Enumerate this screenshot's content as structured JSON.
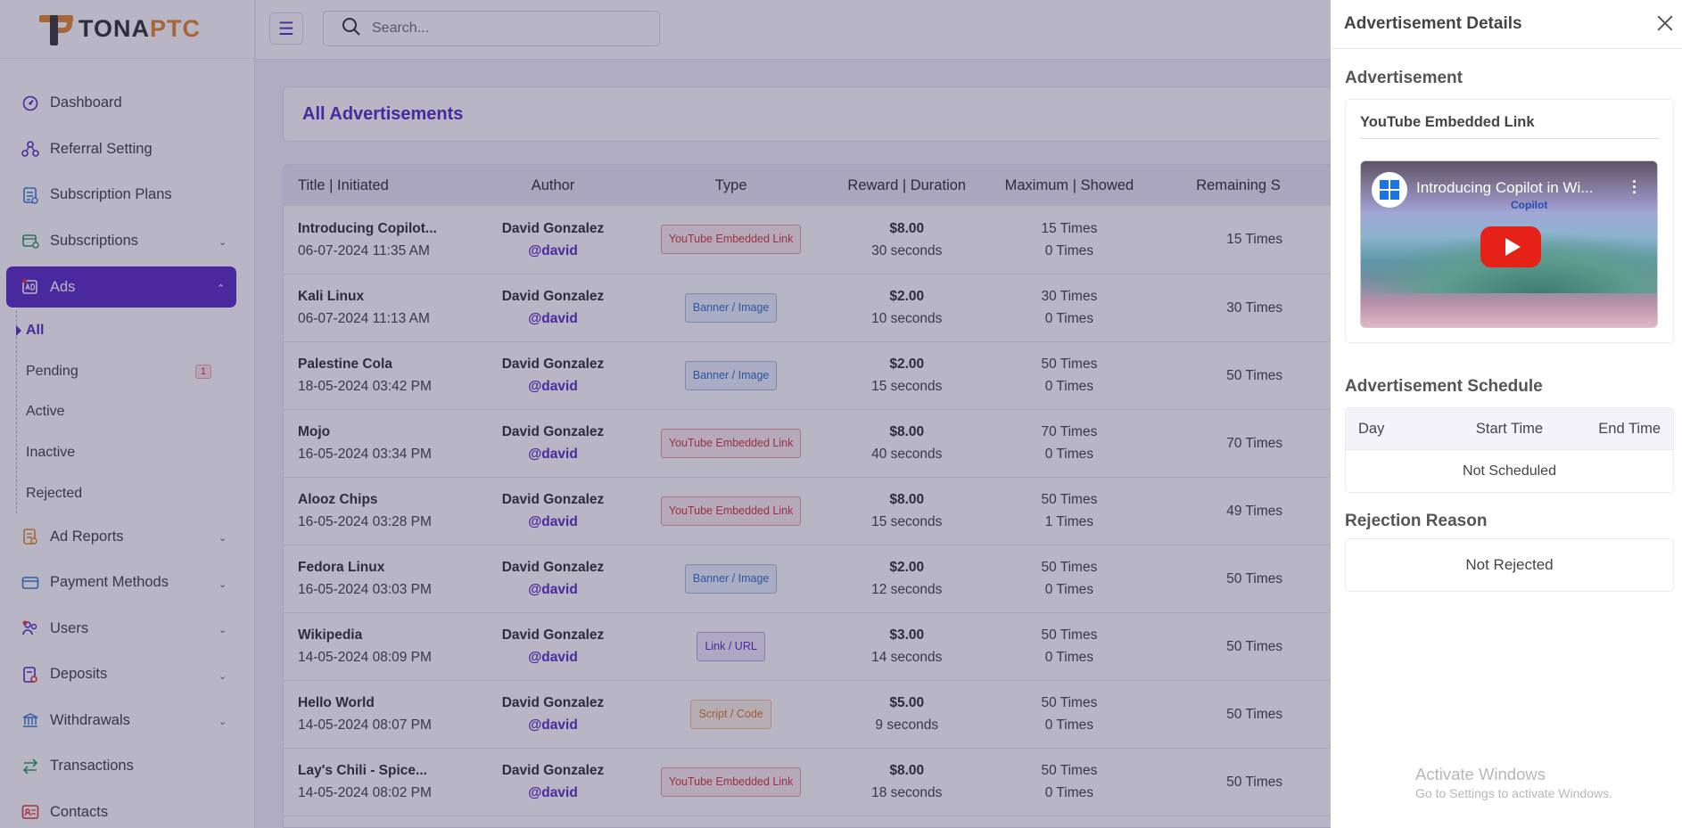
{
  "brand": {
    "name_part1": "TONA",
    "name_part2": "PTC"
  },
  "topbar": {
    "search_placeholder": "Search..."
  },
  "sidebar": {
    "items": [
      {
        "name": "dashboard",
        "icon": "gauge-icon",
        "label": "Dashboard",
        "expandable": false
      },
      {
        "name": "referral-setting",
        "icon": "network-icon",
        "label": "Referral Setting",
        "expandable": false
      },
      {
        "name": "subscription-plans",
        "icon": "clipboard-icon",
        "label": "Subscription Plans",
        "expandable": false
      },
      {
        "name": "subscriptions",
        "icon": "layers-icon",
        "label": "Subscriptions",
        "expandable": true
      },
      {
        "name": "ads",
        "icon": "ad-icon",
        "label": "Ads",
        "expandable": true,
        "active": true
      }
    ],
    "ads_submenu": [
      {
        "label": "All",
        "active": true
      },
      {
        "label": "Pending",
        "badge": "1"
      },
      {
        "label": "Active"
      },
      {
        "label": "Inactive"
      },
      {
        "label": "Rejected"
      }
    ],
    "items_after": [
      {
        "name": "ad-reports",
        "icon": "report-icon",
        "label": "Ad Reports",
        "expandable": true
      },
      {
        "name": "payment-methods",
        "icon": "credit-card-icon",
        "label": "Payment Methods",
        "expandable": true
      },
      {
        "name": "users",
        "icon": "users-icon",
        "label": "Users",
        "expandable": true
      },
      {
        "name": "deposits",
        "icon": "deposit-icon",
        "label": "Deposits",
        "expandable": true
      },
      {
        "name": "withdrawals",
        "icon": "bank-icon",
        "label": "Withdrawals",
        "expandable": true
      },
      {
        "name": "transactions",
        "icon": "swap-icon",
        "label": "Transactions",
        "expandable": false
      },
      {
        "name": "contacts",
        "icon": "contact-card-icon",
        "label": "Contacts",
        "expandable": false
      }
    ]
  },
  "main": {
    "page_title": "All Advertisements",
    "columns": [
      "Title | Initiated",
      "Author",
      "Type",
      "Reward | Duration",
      "Maximum | Showed",
      "Remaining S"
    ],
    "rows": [
      {
        "title": "Introducing Copilot...",
        "date": "06-07-2024 11:35 AM",
        "author": "David Gonzalez",
        "username": "@david",
        "type": "YouTube Embedded Link",
        "type_kind": "yt",
        "reward": "$8.00",
        "duration": "30 seconds",
        "maximum": "15 Times",
        "showed": "0 Times",
        "remaining": "15 Times"
      },
      {
        "title": "Kali Linux",
        "date": "06-07-2024 11:13 AM",
        "author": "David Gonzalez",
        "username": "@david",
        "type": "Banner / Image",
        "type_kind": "banner",
        "reward": "$2.00",
        "duration": "10 seconds",
        "maximum": "30 Times",
        "showed": "0 Times",
        "remaining": "30 Times"
      },
      {
        "title": "Palestine Cola",
        "date": "18-05-2024 03:42 PM",
        "author": "David Gonzalez",
        "username": "@david",
        "type": "Banner / Image",
        "type_kind": "banner",
        "reward": "$2.00",
        "duration": "15 seconds",
        "maximum": "50 Times",
        "showed": "0 Times",
        "remaining": "50 Times"
      },
      {
        "title": "Mojo",
        "date": "16-05-2024 03:34 PM",
        "author": "David Gonzalez",
        "username": "@david",
        "type": "YouTube Embedded Link",
        "type_kind": "yt",
        "reward": "$8.00",
        "duration": "40 seconds",
        "maximum": "70 Times",
        "showed": "0 Times",
        "remaining": "70 Times"
      },
      {
        "title": "Alooz Chips",
        "date": "16-05-2024 03:28 PM",
        "author": "David Gonzalez",
        "username": "@david",
        "type": "YouTube Embedded Link",
        "type_kind": "yt",
        "reward": "$8.00",
        "duration": "15 seconds",
        "maximum": "50 Times",
        "showed": "1 Times",
        "remaining": "49 Times"
      },
      {
        "title": "Fedora Linux",
        "date": "16-05-2024 03:03 PM",
        "author": "David Gonzalez",
        "username": "@david",
        "type": "Banner / Image",
        "type_kind": "banner",
        "reward": "$2.00",
        "duration": "12 seconds",
        "maximum": "50 Times",
        "showed": "0 Times",
        "remaining": "50 Times"
      },
      {
        "title": "Wikipedia",
        "date": "14-05-2024 08:09 PM",
        "author": "David Gonzalez",
        "username": "@david",
        "type": "Link / URL",
        "type_kind": "link",
        "reward": "$3.00",
        "duration": "14 seconds",
        "maximum": "50 Times",
        "showed": "0 Times",
        "remaining": "50 Times"
      },
      {
        "title": "Hello World",
        "date": "14-05-2024 08:07 PM",
        "author": "David Gonzalez",
        "username": "@david",
        "type": "Script / Code",
        "type_kind": "script",
        "reward": "$5.00",
        "duration": "9 seconds",
        "maximum": "50 Times",
        "showed": "0 Times",
        "remaining": "50 Times"
      },
      {
        "title": "Lay's Chili - Spice...",
        "date": "14-05-2024 08:02 PM",
        "author": "David Gonzalez",
        "username": "@david",
        "type": "YouTube Embedded Link",
        "type_kind": "yt",
        "reward": "$8.00",
        "duration": "18 seconds",
        "maximum": "50 Times",
        "showed": "0 Times",
        "remaining": "50 Times"
      }
    ]
  },
  "panel": {
    "title": "Advertisement Details",
    "ad_section": "Advertisement",
    "ad_type_label": "YouTube Embedded Link",
    "video_title": "Introducing Copilot in Wi...",
    "video_overlay_text": "Copilot",
    "schedule_section": "Advertisement Schedule",
    "schedule_cols": {
      "day": "Day",
      "start": "Start Time",
      "end": "End Time"
    },
    "schedule_empty": "Not Scheduled",
    "rejection_section": "Rejection Reason",
    "rejection_value": "Not Rejected"
  },
  "watermark": {
    "line1": "Activate Windows",
    "line2": "Go to Settings to activate Windows."
  }
}
